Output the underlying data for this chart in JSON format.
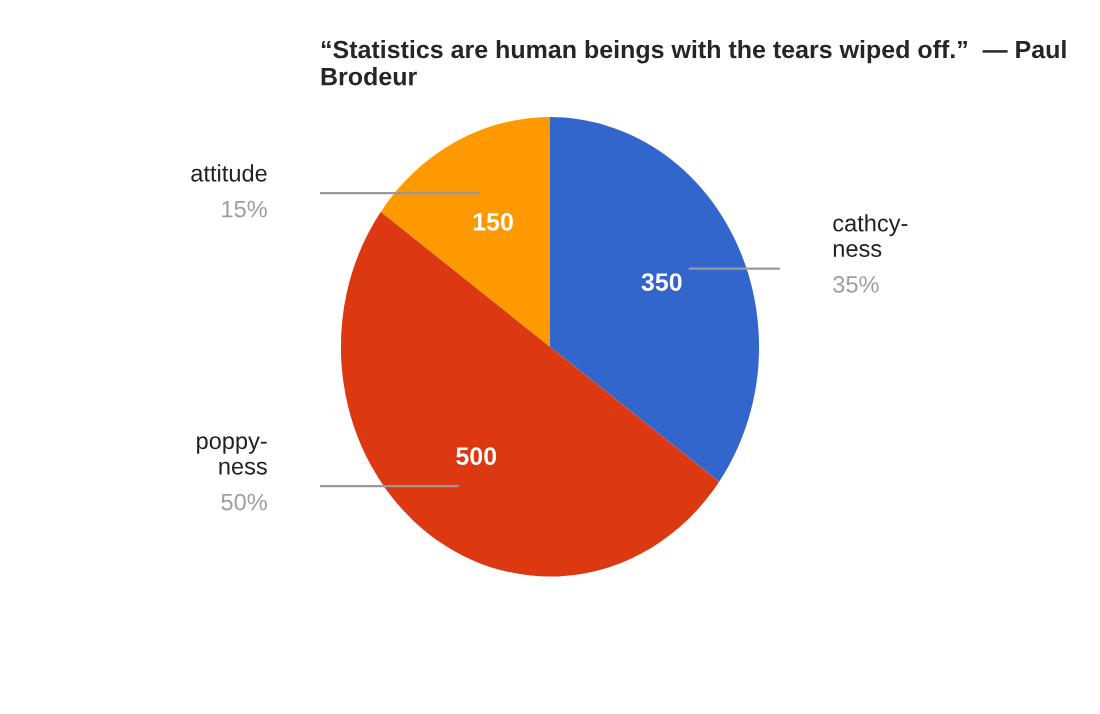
{
  "chart_data": {
    "type": "pie",
    "title": "“Statistics are human beings with the tears wiped off.”  — Paul Brodeur",
    "categories": [
      "cathcy-ness",
      "poppy-ness",
      "attitude"
    ],
    "values": [
      35,
      50,
      15
    ],
    "colors": [
      "#3366cc",
      "#dc3912",
      "#ff9900"
    ],
    "annotations": [
      "350",
      "500",
      "150"
    ],
    "value_labels": [
      "35%",
      "50%",
      "15%"
    ],
    "legend": false
  }
}
